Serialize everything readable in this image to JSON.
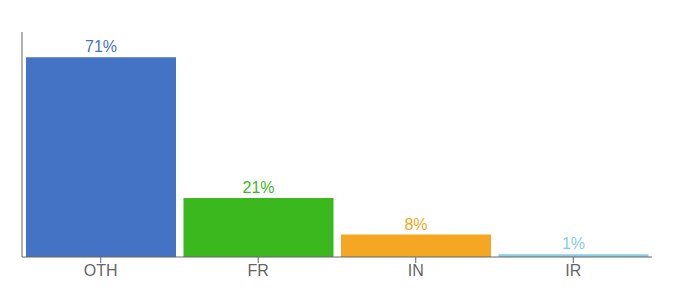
{
  "chart_data": {
    "type": "bar",
    "categories": [
      "OTH",
      "FR",
      "IN",
      "IR"
    ],
    "values": [
      71,
      21,
      8,
      1
    ],
    "value_labels": [
      "71%",
      "21%",
      "8%",
      "1%"
    ],
    "colors": [
      "#4472c4",
      "#3cb81f",
      "#f5a623",
      "#87ceeb"
    ],
    "ylim": [
      0,
      80
    ],
    "data_labels": true,
    "tick_labels": "x",
    "grid": false
  }
}
